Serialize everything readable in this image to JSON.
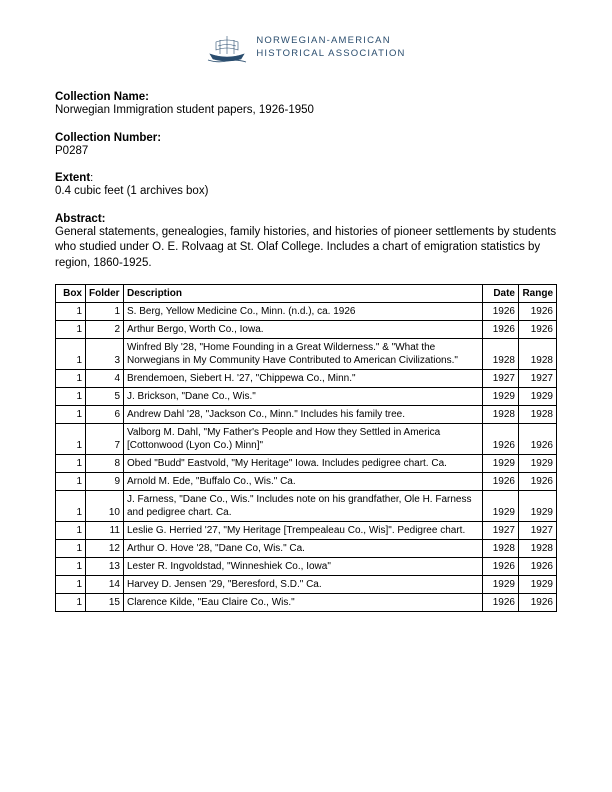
{
  "logo": {
    "line1": "NORWEGIAN-AMERICAN",
    "line2": "HISTORICAL ASSOCIATION",
    "color": "#2a4d6e"
  },
  "fields": {
    "collection_name_label": "Collection Name:",
    "collection_name_value": "Norwegian Immigration student papers, 1926-1950",
    "collection_number_label": "Collection Number:",
    "collection_number_value": "P0287",
    "extent_label": "Extent",
    "extent_value": "0.4 cubic feet (1 archives box)",
    "abstract_label": "Abstract:",
    "abstract_value": "General statements, genealogies, family histories, and histories of pioneer settlements by students who studied under O. E. Rolvaag at St. Olaf College. Includes a chart of emigration statistics by region, 1860-1925."
  },
  "table": {
    "headers": {
      "box": "Box",
      "folder": "Folder",
      "description": "Description",
      "date": "Date",
      "range": "Range"
    },
    "rows": [
      {
        "box": "1",
        "folder": "1",
        "desc": "S. Berg, Yellow Medicine Co., Minn. (n.d.), ca. 1926",
        "date": "1926",
        "range": "1926"
      },
      {
        "box": "1",
        "folder": "2",
        "desc": "Arthur Bergo, Worth Co., Iowa.",
        "date": "1926",
        "range": "1926"
      },
      {
        "box": "1",
        "folder": "3",
        "desc": "Winfred Bly '28, \"Home Founding in a Great Wilderness.\" & \"What the Norwegians in My Community Have Contributed to American Civilizations.\"",
        "date": "1928",
        "range": "1928"
      },
      {
        "box": "1",
        "folder": "4",
        "desc": "Brendemoen, Siebert H. '27, \"Chippewa Co., Minn.\"",
        "date": "1927",
        "range": "1927"
      },
      {
        "box": "1",
        "folder": "5",
        "desc": "J. Brickson, \"Dane Co., Wis.\"",
        "date": "1929",
        "range": "1929"
      },
      {
        "box": "1",
        "folder": "6",
        "desc": "Andrew Dahl '28, \"Jackson Co., Minn.\" Includes his family tree.",
        "date": "1928",
        "range": "1928"
      },
      {
        "box": "1",
        "folder": "7",
        "desc": "Valborg M. Dahl, \"My Father's People and How they Settled in America [Cottonwood (Lyon Co.) Minn]\"",
        "date": "1926",
        "range": "1926"
      },
      {
        "box": "1",
        "folder": "8",
        "desc": "Obed \"Budd\" Eastvold, \"My Heritage\" Iowa. Includes pedigree chart. Ca.",
        "date": "1929",
        "range": "1929"
      },
      {
        "box": "1",
        "folder": "9",
        "desc": "Arnold M. Ede, \"Buffalo Co., Wis.\" Ca.",
        "date": "1926",
        "range": "1926"
      },
      {
        "box": "1",
        "folder": "10",
        "desc": "J. Farness, \"Dane Co., Wis.\" Includes note on his grandfather, Ole H. Farness and pedigree chart. Ca.",
        "date": "1929",
        "range": "1929"
      },
      {
        "box": "1",
        "folder": "11",
        "desc": "Leslie G. Herried '27, \"My Heritage [Trempealeau Co., Wis]\". Pedigree chart.",
        "date": "1927",
        "range": "1927"
      },
      {
        "box": "1",
        "folder": "12",
        "desc": "Arthur O. Hove '28, \"Dane Co, Wis.\" Ca.",
        "date": "1928",
        "range": "1928"
      },
      {
        "box": "1",
        "folder": "13",
        "desc": "Lester R. Ingvoldstad, \"Winneshiek Co., Iowa\"",
        "date": "1926",
        "range": "1926"
      },
      {
        "box": "1",
        "folder": "14",
        "desc": "Harvey D. Jensen '29, \"Beresford, S.D.\" Ca.",
        "date": "1929",
        "range": "1929"
      },
      {
        "box": "1",
        "folder": "15",
        "desc": "Clarence Kilde, \"Eau Claire Co., Wis.\"",
        "date": "1926",
        "range": "1926"
      }
    ]
  }
}
